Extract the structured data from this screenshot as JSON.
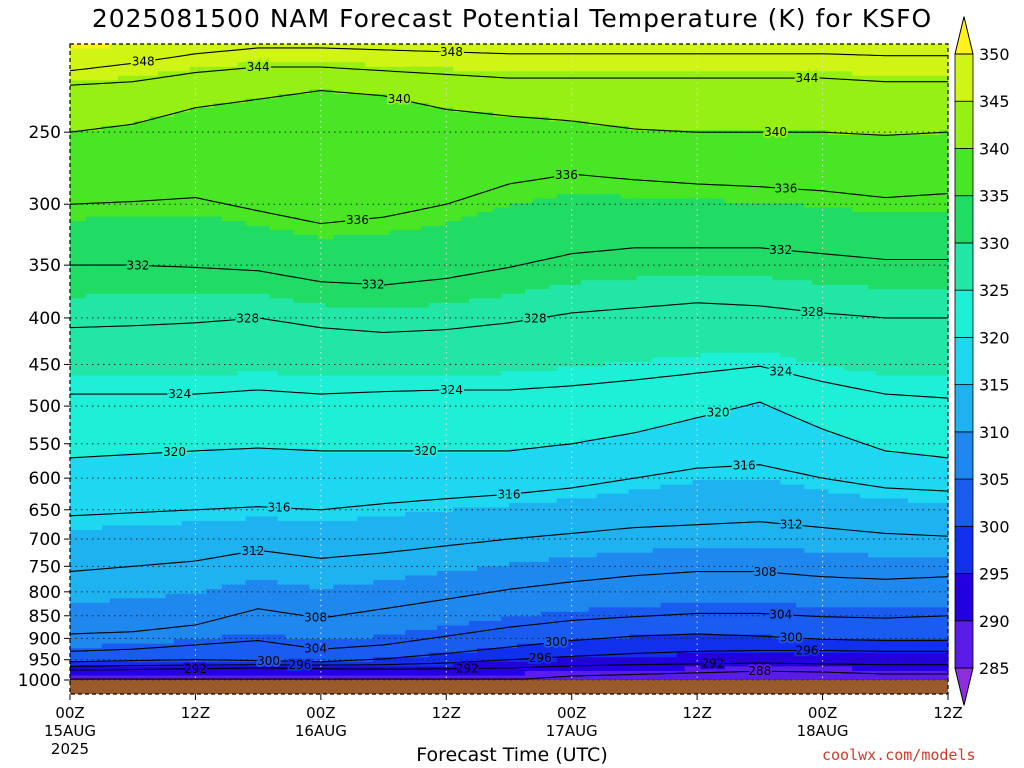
{
  "title": "2025081500 NAM Forecast Potential Temperature (K) for KSFO",
  "xlabel": "Forecast Time (UTC)",
  "credit": "coolwx.com/models",
  "chart_data": {
    "type": "heatmap",
    "title": "2025081500 NAM Forecast Potential Temperature (K) for KSFO",
    "xlabel": "Forecast Time (UTC)",
    "ylabel": "",
    "units": "K",
    "xlim": [
      0,
      84
    ],
    "ylim": [
      1000,
      200
    ],
    "y_scale": "log",
    "grid": true,
    "x_ticks": [
      {
        "hour": 0,
        "label": "00Z",
        "date": "15AUG",
        "year": "2025"
      },
      {
        "hour": 12,
        "label": "12Z"
      },
      {
        "hour": 24,
        "label": "00Z",
        "date": "16AUG"
      },
      {
        "hour": 36,
        "label": "12Z"
      },
      {
        "hour": 48,
        "label": "00Z",
        "date": "17AUG"
      },
      {
        "hour": 60,
        "label": "12Z"
      },
      {
        "hour": 72,
        "label": "00Z",
        "date": "18AUG"
      },
      {
        "hour": 84,
        "label": "12Z"
      }
    ],
    "y_ticks": [
      250,
      300,
      350,
      400,
      450,
      500,
      550,
      600,
      650,
      700,
      750,
      800,
      850,
      900,
      950,
      1000
    ],
    "colorbar": {
      "levels": [
        285,
        290,
        295,
        300,
        305,
        310,
        315,
        320,
        325,
        330,
        335,
        340,
        345,
        350
      ],
      "colors": [
        "#8e2ee0",
        "#5a1ce8",
        "#2200e0",
        "#1030ee",
        "#1a5cf0",
        "#1e88ee",
        "#1eb2f0",
        "#1ed8f2",
        "#1ef0d8",
        "#22e6a6",
        "#20dc64",
        "#48e624",
        "#96f014",
        "#d0f514",
        "#fff21a"
      ]
    },
    "times": [
      0,
      6,
      12,
      18,
      24,
      30,
      36,
      42,
      48,
      54,
      60,
      66,
      72,
      78,
      84
    ],
    "isotherms": [
      {
        "theta": 288,
        "p": [
          1000,
          1000,
          1000,
          1000,
          1000,
          1000,
          1000,
          1000,
          990,
          986,
          982,
          978,
          980,
          985,
          985
        ]
      },
      {
        "theta": 292,
        "p": [
          975,
          974,
          972,
          970,
          972,
          973,
          972,
          970,
          965,
          962,
          960,
          958,
          960,
          962,
          962
        ]
      },
      {
        "theta": 296,
        "p": [
          966,
          964,
          963,
          962,
          963,
          962,
          958,
          950,
          942,
          935,
          930,
          928,
          928,
          930,
          930
        ]
      },
      {
        "theta": 300,
        "p": [
          955,
          952,
          950,
          952,
          955,
          948,
          935,
          920,
          905,
          895,
          890,
          895,
          902,
          905,
          905
        ]
      },
      {
        "theta": 304,
        "p": [
          930,
          925,
          915,
          905,
          925,
          915,
          895,
          875,
          860,
          852,
          845,
          845,
          852,
          855,
          850
        ]
      },
      {
        "theta": 308,
        "p": [
          890,
          885,
          870,
          835,
          855,
          835,
          815,
          795,
          780,
          768,
          760,
          760,
          770,
          775,
          770
        ]
      },
      {
        "theta": 312,
        "p": [
          760,
          750,
          740,
          720,
          735,
          725,
          712,
          700,
          690,
          680,
          675,
          670,
          680,
          690,
          695
        ]
      },
      {
        "theta": 316,
        "p": [
          660,
          655,
          650,
          645,
          650,
          640,
          632,
          625,
          615,
          600,
          585,
          580,
          600,
          615,
          620
        ]
      },
      {
        "theta": 320,
        "p": [
          570,
          565,
          560,
          556,
          560,
          560,
          560,
          560,
          550,
          535,
          515,
          495,
          530,
          560,
          570
        ]
      },
      {
        "theta": 324,
        "p": [
          485,
          485,
          485,
          480,
          485,
          482,
          480,
          480,
          475,
          468,
          460,
          452,
          470,
          485,
          490
        ]
      },
      {
        "theta": 328,
        "p": [
          410,
          408,
          405,
          400,
          410,
          415,
          412,
          405,
          395,
          390,
          385,
          388,
          395,
          400,
          400
        ]
      },
      {
        "theta": 332,
        "p": [
          350,
          350,
          352,
          355,
          365,
          368,
          362,
          352,
          340,
          335,
          335,
          335,
          340,
          345,
          345
        ]
      },
      {
        "theta": 336,
        "p": [
          300,
          298,
          295,
          305,
          315,
          310,
          300,
          285,
          278,
          282,
          285,
          287,
          290,
          295,
          292
        ]
      },
      {
        "theta": 340,
        "p": [
          250,
          245,
          235,
          230,
          225,
          228,
          236,
          240,
          243,
          248,
          250,
          250,
          250,
          252,
          250
        ]
      },
      {
        "theta": 344,
        "p": [
          222,
          220,
          215,
          212,
          212,
          214,
          216,
          218,
          218,
          218,
          218,
          218,
          218,
          220,
          220
        ]
      },
      {
        "theta": 348,
        "p": [
          214,
          210,
          205,
          202,
          202,
          203,
          204,
          205,
          205,
          205,
          205,
          205,
          205,
          206,
          206
        ]
      }
    ],
    "contour_labels": [
      {
        "theta": 348,
        "hour": 36.5
      },
      {
        "theta": 348,
        "hour": 7
      },
      {
        "theta": 344,
        "hour": 18
      },
      {
        "theta": 344,
        "hour": 70.5
      },
      {
        "theta": 340,
        "hour": 31.5
      },
      {
        "theta": 340,
        "hour": 67.5
      },
      {
        "theta": 336,
        "hour": 47.5
      },
      {
        "theta": 336,
        "hour": 68.5
      },
      {
        "theta": 336,
        "hour": 27.5
      },
      {
        "theta": 332,
        "hour": 6.5
      },
      {
        "theta": 332,
        "hour": 29
      },
      {
        "theta": 332,
        "hour": 68
      },
      {
        "theta": 328,
        "hour": 17
      },
      {
        "theta": 328,
        "hour": 44.5
      },
      {
        "theta": 328,
        "hour": 71
      },
      {
        "theta": 324,
        "hour": 10.5
      },
      {
        "theta": 324,
        "hour": 36.5
      },
      {
        "theta": 324,
        "hour": 68
      },
      {
        "theta": 320,
        "hour": 10
      },
      {
        "theta": 320,
        "hour": 34
      },
      {
        "theta": 320,
        "hour": 62
      },
      {
        "theta": 316,
        "hour": 20
      },
      {
        "theta": 316,
        "hour": 42
      },
      {
        "theta": 316,
        "hour": 64.5
      },
      {
        "theta": 312,
        "hour": 17.5
      },
      {
        "theta": 312,
        "hour": 69
      },
      {
        "theta": 308,
        "hour": 23.5
      },
      {
        "theta": 308,
        "hour": 66.5
      },
      {
        "theta": 304,
        "hour": 23.5
      },
      {
        "theta": 304,
        "hour": 68
      },
      {
        "theta": 300,
        "hour": 19
      },
      {
        "theta": 300,
        "hour": 46.5
      },
      {
        "theta": 300,
        "hour": 69
      },
      {
        "theta": 296,
        "hour": 22
      },
      {
        "theta": 296,
        "hour": 45
      },
      {
        "theta": 296,
        "hour": 70.5
      },
      {
        "theta": 292,
        "hour": 12
      },
      {
        "theta": 292,
        "hour": 38
      },
      {
        "theta": 292,
        "hour": 61.5
      },
      {
        "theta": 288,
        "hour": 66
      }
    ]
  }
}
